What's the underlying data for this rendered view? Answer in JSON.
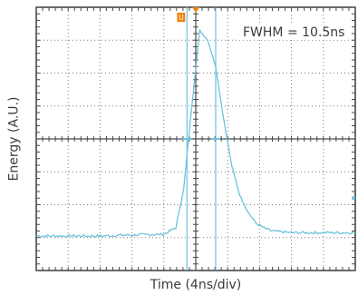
{
  "chart_data": {
    "type": "line",
    "title": "",
    "xlabel": "Time (4ns/div)",
    "ylabel": "Energy (A.U.)",
    "annotation": "FWHM = 10.5ns",
    "x_divisions": 10,
    "y_divisions": 8,
    "xlim": [
      0,
      40
    ],
    "ylim": [
      0,
      8
    ],
    "grid": "dotted",
    "series": [
      {
        "values": [
          [
            0,
            1.05
          ],
          [
            4,
            1.05
          ],
          [
            8,
            1.05
          ],
          [
            12,
            1.08
          ],
          [
            16,
            1.1
          ],
          [
            17.5,
            1.3
          ],
          [
            18.5,
            2.5
          ],
          [
            19.5,
            5.0
          ],
          [
            20.5,
            7.3
          ],
          [
            21.5,
            7.0
          ],
          [
            22.5,
            6.2
          ],
          [
            23.5,
            4.6
          ],
          [
            24.5,
            3.2
          ],
          [
            25.5,
            2.3
          ],
          [
            26.5,
            1.8
          ],
          [
            27.5,
            1.45
          ],
          [
            28.5,
            1.3
          ],
          [
            29.5,
            1.2
          ],
          [
            32,
            1.15
          ],
          [
            36,
            1.15
          ],
          [
            40,
            1.15
          ]
        ]
      }
    ],
    "cursors": [
      18.9,
      22.5
    ],
    "trigger_marker": "U",
    "colors": {
      "trace": "#6fc3de",
      "grid": "#7a7a7a",
      "frame": "#3a3a3a",
      "marker": "#f0820f"
    }
  }
}
